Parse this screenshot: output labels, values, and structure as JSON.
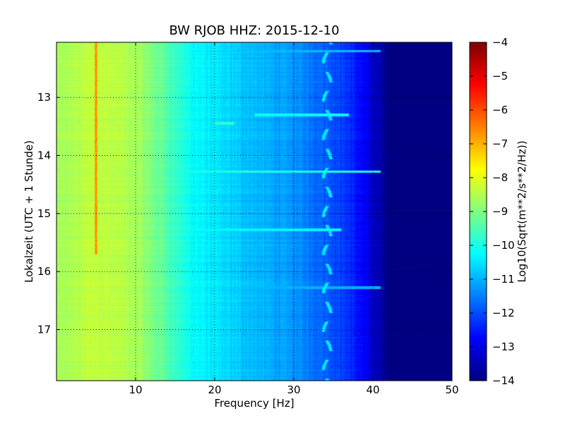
{
  "chart_data": {
    "type": "heatmap",
    "title": "BW RJOB HHZ: 2015-12-10",
    "xlabel": "Frequency [Hz]",
    "ylabel": "Lokalzeit (UTC + 1 Stunde)",
    "xlim": [
      0,
      50
    ],
    "ylim": [
      17.88,
      12.05
    ],
    "x_ticks": [
      10,
      20,
      30,
      40,
      50
    ],
    "y_ticks": [
      13,
      14,
      15,
      16,
      17
    ],
    "y_inverted": true,
    "grid": true,
    "colormap": "jet",
    "colorbar": {
      "label": "Log10(Sqrt(m**2/s**2/Hz))",
      "range": [
        -14,
        -4
      ],
      "ticks": [
        -4,
        -5,
        -6,
        -7,
        -8,
        -9,
        -10,
        -11,
        -12,
        -13,
        -14
      ]
    },
    "level_profile": [
      {
        "freq": 0,
        "value": -8.7
      },
      {
        "freq": 5,
        "value": -8.3
      },
      {
        "freq": 10,
        "value": -8.6
      },
      {
        "freq": 13,
        "value": -9.2
      },
      {
        "freq": 17,
        "value": -10.2
      },
      {
        "freq": 21,
        "value": -10.6
      },
      {
        "freq": 26,
        "value": -11.0
      },
      {
        "freq": 30,
        "value": -11.3
      },
      {
        "freq": 34,
        "value": -11.8
      },
      {
        "freq": 37,
        "value": -12.3
      },
      {
        "freq": 40,
        "value": -13.2
      },
      {
        "freq": 42,
        "value": -14.0
      },
      {
        "freq": 50,
        "value": -14.0
      }
    ],
    "features": [
      {
        "kind": "tonal-line",
        "freq": 5.0,
        "time_range": [
          12.05,
          15.7
        ],
        "value": -6.8
      },
      {
        "kind": "broadband-event",
        "time": 13.3,
        "freq_range": [
          25,
          37
        ],
        "value": -10.2
      },
      {
        "kind": "broadband-event",
        "time": 13.45,
        "freq_range": [
          20,
          22.5
        ],
        "value": -9.8
      },
      {
        "kind": "broadband-event",
        "time": 14.28,
        "freq_range": [
          12,
          41
        ],
        "value": -10.0
      },
      {
        "kind": "broadband-event",
        "time": 15.28,
        "freq_range": [
          7,
          36
        ],
        "value": -10.3
      },
      {
        "kind": "broadband-event",
        "time": 16.28,
        "freq_range": [
          14,
          41
        ],
        "value": -11.0
      },
      {
        "kind": "broadband-event",
        "time": 12.2,
        "freq_range": [
          18,
          41
        ],
        "value": -10.9
      },
      {
        "kind": "tonal-wiggle",
        "freq": 34.2,
        "time_range": [
          12.05,
          17.88
        ],
        "value": -10.5
      }
    ]
  }
}
